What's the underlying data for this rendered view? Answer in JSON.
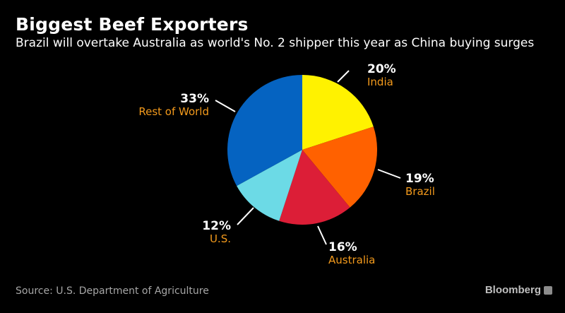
{
  "header": {
    "title": "Biggest Beef Exporters",
    "subtitle": "Brazil will overtake Australia as world's No. 2 shipper this year as China buying surges"
  },
  "footer": {
    "source": "Source: U.S. Department of Agriculture",
    "brand": "Bloomberg"
  },
  "colors": {
    "background": "#000000",
    "value_label": "#ffffff",
    "category_label": "#f39a1c",
    "leader_line": "#ffffff"
  },
  "chart_data": {
    "type": "pie",
    "start": "12 o'clock",
    "direction": "clockwise",
    "slices": [
      {
        "label": "India",
        "value": 20,
        "value_label": "20%",
        "color": "#fff200"
      },
      {
        "label": "Brazil",
        "value": 19,
        "value_label": "19%",
        "color": "#ff6100"
      },
      {
        "label": "Australia",
        "value": 16,
        "value_label": "16%",
        "color": "#dc1e37"
      },
      {
        "label": "U.S.",
        "value": 12,
        "value_label": "12%",
        "color": "#6cdae6"
      },
      {
        "label": "Rest of World",
        "value": 33,
        "value_label": "33%",
        "color": "#0563c1"
      }
    ]
  }
}
